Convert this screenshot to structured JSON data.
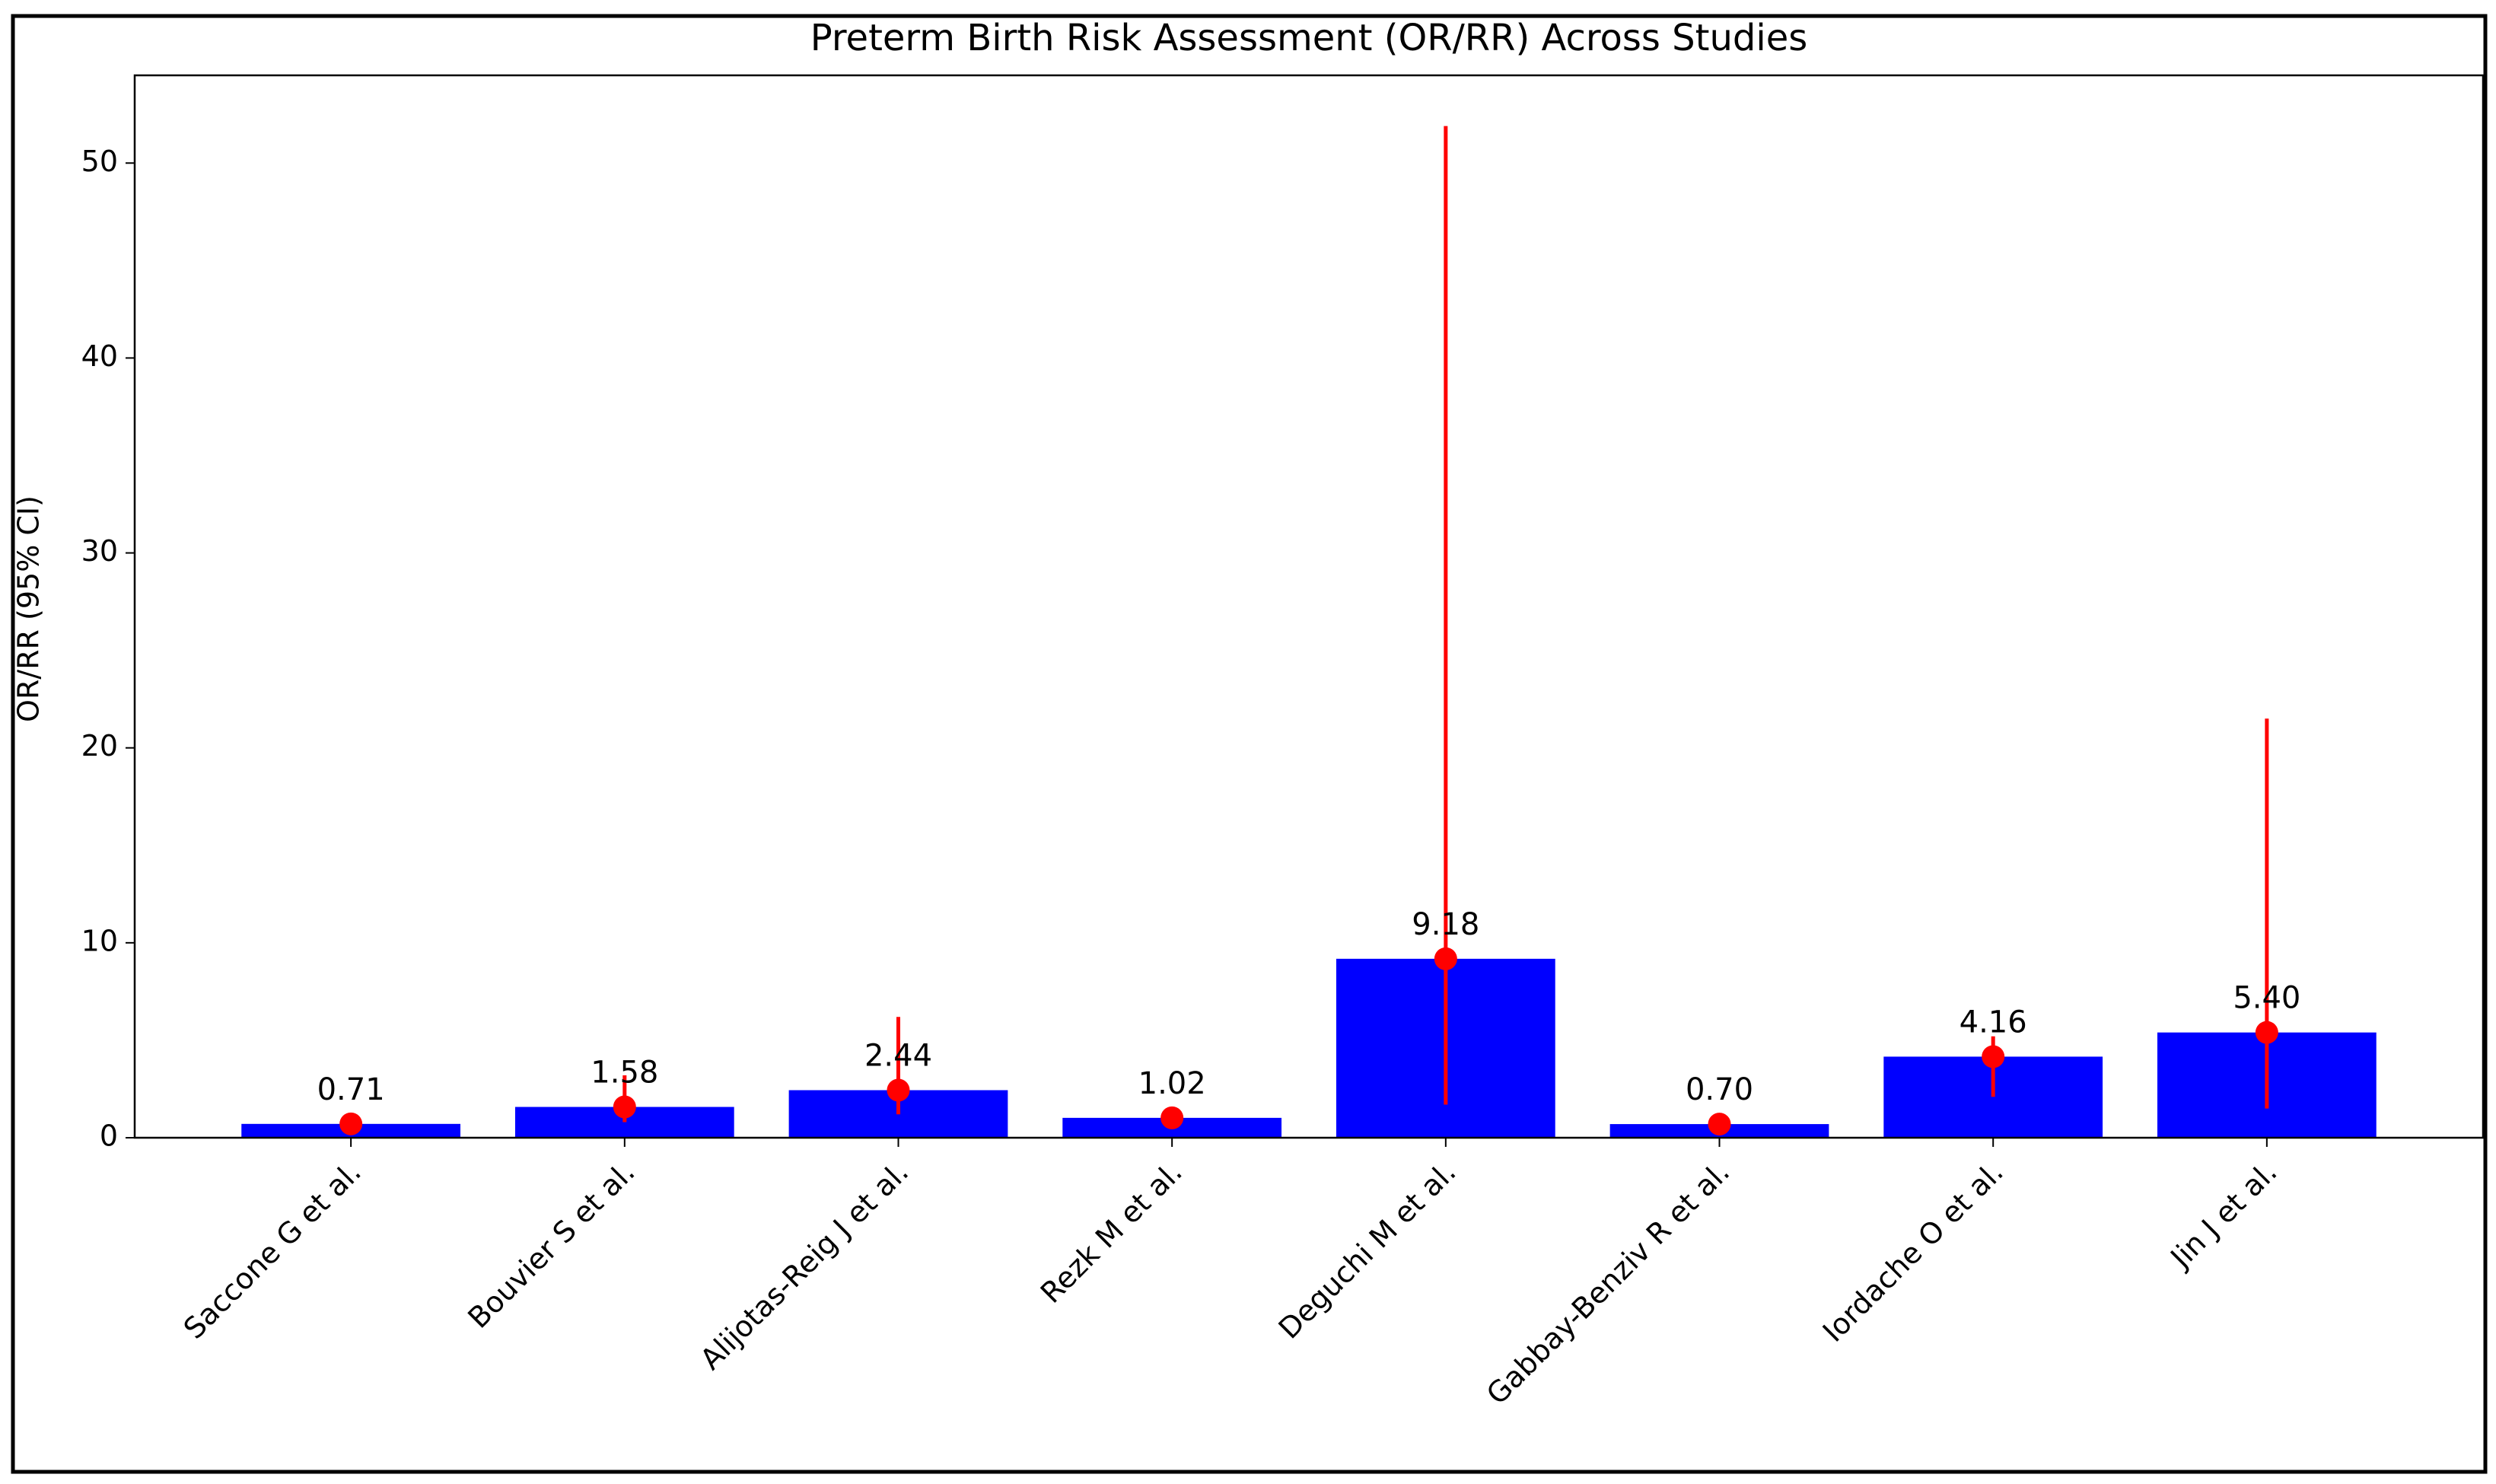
{
  "chart_data": {
    "type": "bar",
    "title": "Preterm Birth Risk Assessment (OR/RR) Across Studies",
    "ylabel": "OR/RR (95% CI)",
    "categories": [
      "Saccone G et al.",
      "Bouvier S et al.",
      "Alijotas-Reig J et al.",
      "Rezk M et al.",
      "Deguchi M et al.",
      "Gabbay-Benziv R et al.",
      "Iordache O et al.",
      "Jin J et al."
    ],
    "values": [
      0.71,
      1.58,
      2.44,
      1.02,
      9.18,
      0.7,
      4.16,
      5.4
    ],
    "value_labels": [
      "0.71",
      "1.58",
      "2.44",
      "1.02",
      "9.18",
      "0.70",
      "4.16",
      "5.40"
    ],
    "ci_lower": [
      0.5,
      0.8,
      1.2,
      0.7,
      1.7,
      0.5,
      2.1,
      1.5
    ],
    "ci_upper": [
      1.0,
      3.2,
      6.2,
      1.5,
      51.9,
      1.0,
      5.2,
      21.5
    ],
    "color": "#0000ff",
    "error_color": "#ff0000",
    "ylim": [
      0,
      54.5
    ],
    "yticks": [
      0,
      10,
      20,
      30,
      40,
      50
    ],
    "grid": false
  }
}
